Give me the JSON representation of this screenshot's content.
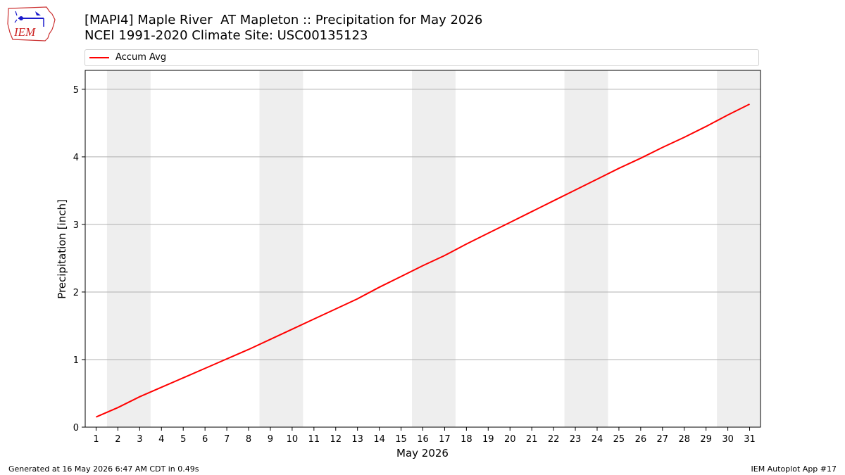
{
  "header": {
    "title_line1": "[MAPI4] Maple River  AT Mapleton :: Precipitation for May 2026",
    "title_line2": "NCEI 1991-2020 Climate Site: USC00135123"
  },
  "logo": {
    "text": "IEM",
    "icon": "iem-iowa-logo"
  },
  "footer": {
    "left": "Generated at 16 May 2026 6:47 AM CDT in 0.49s",
    "right": "IEM Autoplot App #17"
  },
  "chart_data": {
    "type": "line",
    "title": "[MAPI4] Maple River  AT Mapleton :: Precipitation for May 2026",
    "subtitle": "NCEI 1991-2020 Climate Site: USC00135123",
    "xlabel": "May 2026",
    "ylabel": "Precipitation [inch]",
    "xlim": [
      0.5,
      31.5
    ],
    "ylim": [
      0,
      5.28
    ],
    "x_ticks": [
      1,
      2,
      3,
      4,
      5,
      6,
      7,
      8,
      9,
      10,
      11,
      12,
      13,
      14,
      15,
      16,
      17,
      18,
      19,
      20,
      21,
      22,
      23,
      24,
      25,
      26,
      27,
      28,
      29,
      30,
      31
    ],
    "y_ticks": [
      0,
      1,
      2,
      3,
      4,
      5
    ],
    "grid": "horizontal",
    "legend": "top",
    "weekend_shading": [
      [
        1.5,
        3.5
      ],
      [
        8.5,
        10.5
      ],
      [
        15.5,
        17.5
      ],
      [
        22.5,
        24.5
      ],
      [
        29.5,
        31.5
      ]
    ],
    "series": [
      {
        "name": "Accum Avg",
        "color": "#ff0000",
        "x": [
          1,
          2,
          3,
          4,
          5,
          6,
          7,
          8,
          9,
          10,
          11,
          12,
          13,
          14,
          15,
          16,
          17,
          18,
          19,
          20,
          21,
          22,
          23,
          24,
          25,
          26,
          27,
          28,
          29,
          30,
          31
        ],
        "values": [
          0.15,
          0.29,
          0.45,
          0.59,
          0.73,
          0.87,
          1.01,
          1.15,
          1.3,
          1.45,
          1.6,
          1.75,
          1.9,
          2.07,
          2.23,
          2.39,
          2.54,
          2.71,
          2.87,
          3.03,
          3.19,
          3.35,
          3.51,
          3.67,
          3.83,
          3.98,
          4.14,
          4.29,
          4.45,
          4.62,
          4.78
        ]
      }
    ]
  }
}
